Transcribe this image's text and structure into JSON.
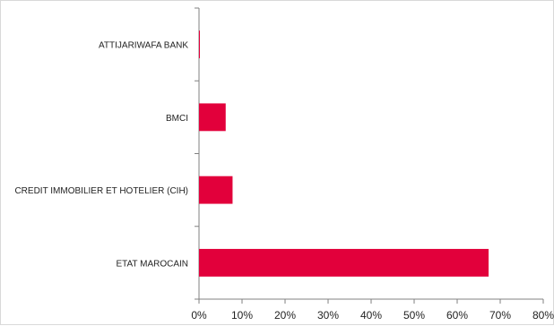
{
  "chart_data": {
    "type": "bar",
    "orientation": "horizontal",
    "title": "",
    "xlabel": "",
    "ylabel": "",
    "categories": [
      "ATTIJARIWAFA BANK",
      "BMCI",
      "CREDIT IMMOBILIER ET HOTELIER (CIH)",
      "ETAT MAROCAIN"
    ],
    "values": [
      0.2,
      6.2,
      7.8,
      67.3
    ],
    "xlim": [
      0,
      80
    ],
    "xticks": [
      "0%",
      "10%",
      "20%",
      "30%",
      "40%",
      "50%",
      "60%",
      "70%",
      "80%"
    ],
    "bar_color": "#e2003b",
    "grid": false,
    "legend": "none"
  }
}
